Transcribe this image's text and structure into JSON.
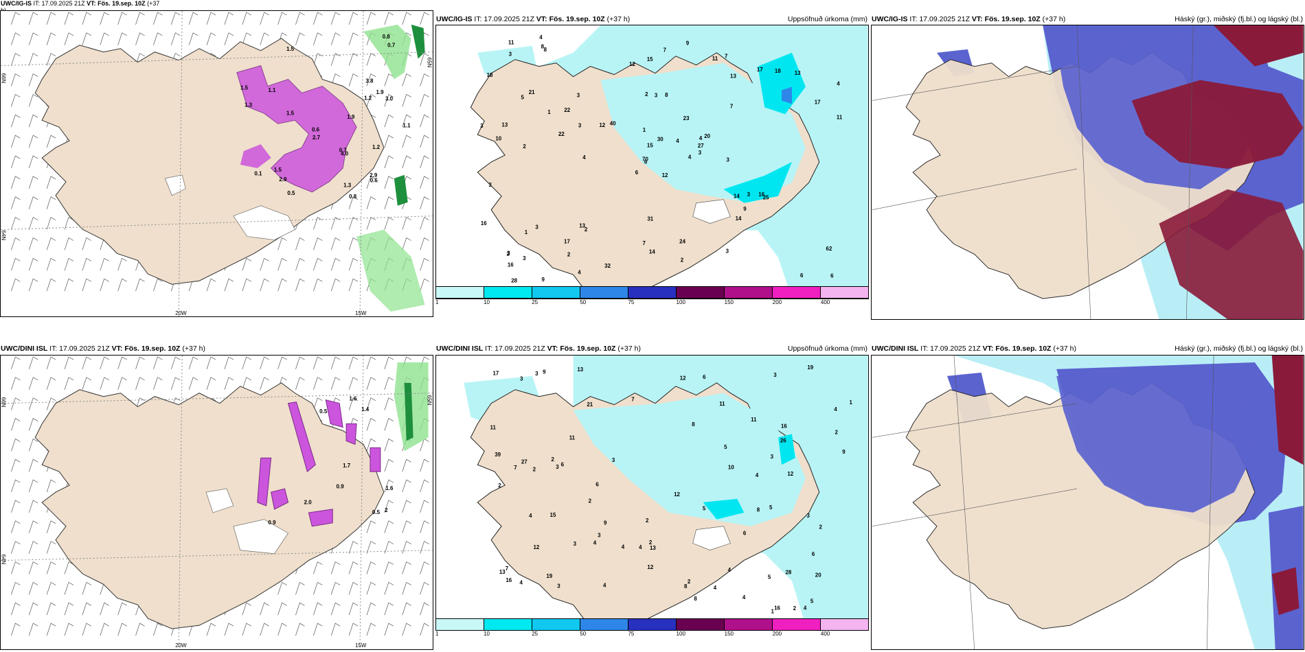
{
  "rows": [
    {
      "model": "UWC/IG-IS",
      "wind": {
        "title_prefix": "UWC/IG-IS",
        "init": "IT: 17.09.2025 21Z",
        "valid": "VT: Fös. 19.sep. 10Z",
        "lead": "(+37",
        "lead_cont": "h)",
        "axis": {
          "lon20": "20W",
          "lon15": "15W",
          "lat66a": "66N",
          "lat66b": "65N",
          "lat64": "64N",
          "lat65r": "65N",
          "lat63": "63W"
        },
        "values": [
          "0.8",
          "1.5",
          "1.5",
          "1.1",
          "1.9",
          "1.3",
          "1.1",
          "1.5",
          "2.7",
          "2.9",
          "0.1",
          "1.5",
          "0.6",
          "0.7",
          "1.2",
          "0.8",
          "1.3",
          "0.7",
          "1.2",
          "3.0",
          "2.9",
          "4.0",
          "0.5",
          "0.6",
          "1.9",
          "3.8"
        ]
      },
      "precip": {
        "title_prefix": "UWC/IG-IS",
        "init": "IT: 17.09.2025 21Z",
        "valid": "VT: Fös. 19.sep. 10Z",
        "lead": "(+37 h)",
        "right_title": "Uppsöfnuð úrkoma (mm)",
        "values": [
          "12",
          "5",
          "6",
          "3",
          "4",
          "2",
          "7",
          "8",
          "13",
          "4",
          "8",
          "6",
          "2",
          "4",
          "6",
          "7",
          "9",
          "2",
          "23",
          "3",
          "40",
          "16",
          "2",
          "3",
          "20",
          "25",
          "21",
          "15",
          "10",
          "14",
          "11",
          "70",
          "7",
          "15",
          "3",
          "17",
          "13",
          "6",
          "62",
          "16",
          "9",
          "12",
          "22",
          "14",
          "4",
          "3",
          "27",
          "28",
          "14",
          "3",
          "1",
          "17",
          "18",
          "9",
          "3",
          "17",
          "8",
          "11",
          "24",
          "13",
          "7",
          "4",
          "13",
          "22",
          "18",
          "4",
          "11",
          "12",
          "30",
          "16",
          "31",
          "32",
          "3",
          "3",
          "2",
          "3",
          "1",
          "3",
          "1",
          "2",
          "4",
          "3",
          "3"
        ]
      },
      "cloud": {
        "title_prefix": "UWC/IG-IS",
        "init": "IT: 17.09.2025 21Z",
        "valid": "VT: Fös. 19.sep. 10Z",
        "lead": "(+37 h)",
        "right_title": "Háský (gr.), miðský (fj.bl.) og lágský (bl.)"
      }
    },
    {
      "model": "UWC/DINI ISL",
      "wind": {
        "title_prefix": "UWC/DINI ISL",
        "init": "IT: 17.09.2025 21Z",
        "valid": "VT: Fös. 19.sep. 10Z",
        "lead": "(+37 h)",
        "lead_cont": "",
        "axis": {
          "lon20": "20W",
          "lon15": "15W",
          "lat66a": "66N",
          "lat66b": "65N",
          "lat64": "64N",
          "lat65r": "65N",
          "lat63": "63W"
        },
        "values": [
          "0.9",
          "1.6",
          "1.7",
          "0.9",
          "0.5",
          "1.6",
          "2",
          "1.4",
          "0.5",
          "2.0"
        ]
      },
      "precip": {
        "title_prefix": "UWC/DINI ISL",
        "init": "IT: 17.09.2025 21Z",
        "valid": "VT: Fös. 19.sep. 10Z",
        "lead": "(+37 h)",
        "right_title": "Uppsöfnuð úrkoma (mm)",
        "values": [
          "2",
          "3",
          "3",
          "5",
          "4",
          "21",
          "4",
          "2",
          "4",
          "4",
          "12",
          "12",
          "17",
          "16",
          "6",
          "4",
          "12",
          "9",
          "4",
          "3",
          "2",
          "6",
          "4",
          "3",
          "28",
          "10",
          "8",
          "7",
          "16",
          "13",
          "3",
          "4",
          "4",
          "6",
          "11",
          "39",
          "27",
          "9",
          "15",
          "4",
          "2",
          "5",
          "3",
          "4",
          "13",
          "16",
          "2",
          "11",
          "13",
          "11",
          "8",
          "3",
          "5",
          "3",
          "2",
          "5",
          "3",
          "3",
          "12",
          "19",
          "6",
          "7",
          "11",
          "8",
          "5",
          "7",
          "19",
          "8",
          "6",
          "9",
          "4",
          "2",
          "12",
          "26",
          "20",
          "2",
          "2",
          "2",
          "1",
          "1"
        ]
      },
      "cloud": {
        "title_prefix": "UWC/DINI ISL",
        "init": "IT: 17.09.2025 21Z",
        "valid": "VT: Fös. 19.sep. 10Z",
        "lead": "(+37 h)",
        "right_title": "Háský (gr.), miðský (fj.bl.) og lágský (bl.)"
      }
    }
  ],
  "legend": {
    "ticks": [
      "1",
      "10",
      "25",
      "50",
      "75",
      "100",
      "150",
      "200",
      "400"
    ],
    "colors": [
      "#c8f8f8",
      "#00e8f0",
      "#10c8f0",
      "#2e86e8",
      "#2830c0",
      "#6a0050",
      "#b0108a",
      "#f020c0",
      "#f4b4f0"
    ]
  },
  "colors": {
    "land": "#efdfcc",
    "precip_light": "#b8f4f6",
    "precip_med": "#00e6f0",
    "cloud_low": "#b9eef6",
    "cloud_mid": "#5b63cf",
    "cloud_high": "#8a1a3a",
    "wind_hatch": "#cc55dd"
  }
}
